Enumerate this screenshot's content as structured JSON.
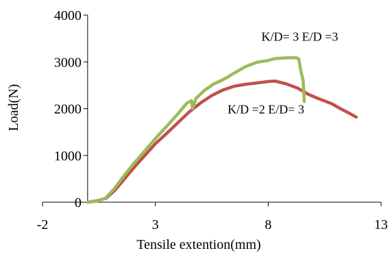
{
  "chart_data": {
    "type": "line",
    "xlabel": "Tensile extention(mm)",
    "ylabel": "Load(N)",
    "xlim": [
      -2,
      13
    ],
    "ylim": [
      0,
      4000
    ],
    "x_ticks": [
      -2,
      3,
      8,
      13
    ],
    "y_ticks": [
      0,
      1000,
      2000,
      3000,
      4000
    ],
    "grid": false,
    "legend": "none",
    "series": [
      {
        "name": "K/D =2 E/D= 3",
        "color": "#C0504D",
        "points": [
          [
            0.0,
            0
          ],
          [
            0.4,
            30
          ],
          [
            0.8,
            80
          ],
          [
            1.2,
            250
          ],
          [
            1.6,
            480
          ],
          [
            2.0,
            710
          ],
          [
            2.5,
            980
          ],
          [
            3.0,
            1250
          ],
          [
            3.5,
            1470
          ],
          [
            4.0,
            1700
          ],
          [
            4.5,
            1930
          ],
          [
            5.0,
            2120
          ],
          [
            5.5,
            2280
          ],
          [
            6.0,
            2400
          ],
          [
            6.5,
            2480
          ],
          [
            7.0,
            2520
          ],
          [
            7.5,
            2550
          ],
          [
            8.0,
            2580
          ],
          [
            8.3,
            2590
          ],
          [
            8.8,
            2530
          ],
          [
            9.3,
            2440
          ],
          [
            9.8,
            2300
          ],
          [
            10.3,
            2200
          ],
          [
            10.8,
            2110
          ],
          [
            11.2,
            2000
          ],
          [
            11.6,
            1900
          ],
          [
            11.9,
            1820
          ]
        ]
      },
      {
        "name": "K/D= 3 E/D =3",
        "color": "#9BBB59",
        "points": [
          [
            0.0,
            0
          ],
          [
            0.4,
            20
          ],
          [
            0.8,
            90
          ],
          [
            1.2,
            300
          ],
          [
            1.6,
            560
          ],
          [
            2.0,
            800
          ],
          [
            2.5,
            1080
          ],
          [
            3.0,
            1360
          ],
          [
            3.5,
            1620
          ],
          [
            4.0,
            1890
          ],
          [
            4.4,
            2120
          ],
          [
            4.6,
            2170
          ],
          [
            4.65,
            2000
          ],
          [
            4.8,
            2220
          ],
          [
            5.2,
            2400
          ],
          [
            5.6,
            2530
          ],
          [
            6.0,
            2620
          ],
          [
            6.5,
            2760
          ],
          [
            7.0,
            2900
          ],
          [
            7.5,
            2990
          ],
          [
            8.0,
            3030
          ],
          [
            8.3,
            3070
          ],
          [
            8.8,
            3085
          ],
          [
            9.2,
            3090
          ],
          [
            9.35,
            3070
          ],
          [
            9.45,
            2800
          ],
          [
            9.55,
            2600
          ],
          [
            9.6,
            2150
          ]
        ]
      }
    ],
    "annotations": [
      {
        "text": "K/D= 3 E/D =3",
        "x": 9.4,
        "y": 3450,
        "series": 1
      },
      {
        "text": "K/D =2 E/D= 3",
        "x": 7.9,
        "y": 1900,
        "series": 0
      }
    ]
  }
}
